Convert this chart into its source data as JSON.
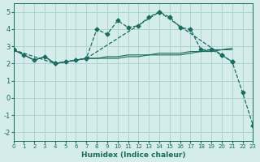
{
  "xlabel": "Humidex (Indice chaleur)",
  "ylabel": "",
  "background_color": "#d4ecea",
  "grid_color": "#b0d4d0",
  "line_color": "#1a6b60",
  "xlim": [
    0,
    23
  ],
  "ylim": [
    -2.5,
    5.5
  ],
  "yticks": [
    -2,
    -1,
    0,
    1,
    2,
    3,
    4,
    5
  ],
  "xticks": [
    0,
    1,
    2,
    3,
    4,
    5,
    6,
    7,
    8,
    9,
    10,
    11,
    12,
    13,
    14,
    15,
    16,
    17,
    18,
    19,
    20,
    21,
    22,
    23
  ],
  "series": [
    {
      "x": [
        0,
        1,
        2,
        3,
        4,
        5,
        6,
        7,
        8,
        9,
        10,
        11,
        12,
        13,
        14,
        15,
        16,
        17,
        18,
        19,
        20,
        21
      ],
      "y": [
        2.8,
        2.5,
        2.2,
        2.4,
        2.0,
        2.1,
        2.2,
        2.3,
        4.0,
        3.7,
        4.5,
        4.1,
        4.2,
        4.7,
        5.0,
        4.7,
        4.1,
        4.0,
        2.8,
        2.8,
        2.5,
        2.1
      ],
      "marker": "D",
      "linestyle": "--"
    },
    {
      "x": [
        0,
        1,
        2,
        3,
        4,
        5,
        6,
        7,
        8,
        9,
        10,
        11,
        12,
        13,
        14,
        15,
        16,
        17,
        18,
        19,
        20,
        21
      ],
      "y": [
        2.8,
        2.5,
        2.2,
        2.4,
        2.0,
        2.1,
        2.2,
        2.3,
        2.3,
        2.3,
        2.3,
        2.4,
        2.4,
        2.5,
        2.5,
        2.5,
        2.5,
        2.6,
        2.7,
        2.8,
        2.8,
        2.9
      ],
      "marker": null,
      "linestyle": "-"
    },
    {
      "x": [
        0,
        1,
        2,
        3,
        4,
        5,
        6,
        7,
        8,
        9,
        10,
        11,
        12,
        13,
        14,
        15,
        16,
        17,
        18,
        19,
        20,
        21
      ],
      "y": [
        2.8,
        2.5,
        2.2,
        2.4,
        2.0,
        2.1,
        2.2,
        2.3,
        2.3,
        2.4,
        2.4,
        2.5,
        2.5,
        2.5,
        2.6,
        2.6,
        2.6,
        2.7,
        2.7,
        2.7,
        2.8,
        2.8
      ],
      "marker": null,
      "linestyle": "-"
    },
    {
      "x": [
        0,
        4,
        7,
        14,
        20,
        21,
        22,
        23
      ],
      "y": [
        2.8,
        2.0,
        2.3,
        5.0,
        2.5,
        2.1,
        0.3,
        -1.6
      ],
      "marker": "D",
      "linestyle": "--"
    }
  ]
}
